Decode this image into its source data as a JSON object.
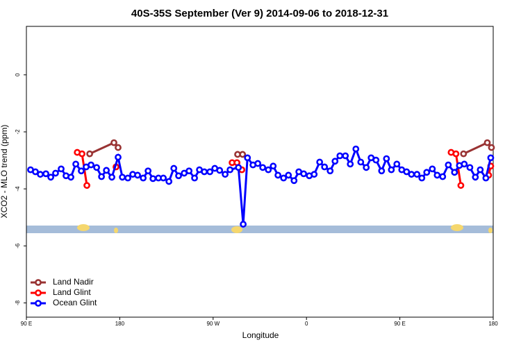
{
  "chart_data": {
    "type": "line",
    "title": "40S-35S September (Ver 9)   2014-09-06 to 2018-12-31",
    "x_label": "Longitude",
    "y_label": "XCO2 - MLO trend (ppm)",
    "xlim": [
      90,
      540
    ],
    "xticks": [
      {
        "value": 90,
        "label": "90 E"
      },
      180,
      {
        "value": 270,
        "label": "90 W"
      },
      {
        "value": 360,
        "label": "0"
      },
      {
        "value": 450,
        "label": "90 E"
      },
      {
        "value": 540,
        "label": "180"
      }
    ],
    "ylim": [
      -8.5,
      1.7
    ],
    "yticks": [
      0,
      -2,
      -4,
      -6,
      -8
    ],
    "legend": "bottom-left",
    "series": [
      {
        "name": "Land Nadir",
        "color": "#993333",
        "x": [
          151.0,
          174.4,
          178.4,
          null,
          293.6,
          298.4,
          null,
          511.4,
          534.3,
          538.3
        ],
        "values": [
          -2.77,
          -2.38,
          -2.55,
          null,
          -2.79,
          -2.79,
          null,
          -2.77,
          -2.38,
          -2.55
        ]
      },
      {
        "name": "Land Glint",
        "color": "#ff0000",
        "x": [
          139.0,
          143.6,
          148.3,
          null,
          176.4,
          null,
          288.3,
          293.0,
          297.7,
          null,
          499.4,
          504.1,
          508.8,
          null,
          535.6,
          537.6
        ],
        "values": [
          -2.72,
          -2.77,
          -3.88,
          null,
          -3.23,
          null,
          -3.08,
          -3.08,
          -3.33,
          null,
          -2.72,
          -2.77,
          -3.88,
          null,
          -3.52,
          -3.2
        ]
      },
      {
        "name": "Ocean Glint",
        "color": "#0000ff",
        "x": [
          94.0,
          98.7,
          103.4,
          108.8,
          113.5,
          118.1,
          123.5,
          128.2,
          132.9,
          137.6,
          142.9,
          147.6,
          152.3,
          157.7,
          162.4,
          167.1,
          172.4,
          178.4,
          182.5,
          187.8,
          192.5,
          197.2,
          202.6,
          207.3,
          212.0,
          217.3,
          222.0,
          227.4,
          232.1,
          236.7,
          242.1,
          246.8,
          252.1,
          256.8,
          261.5,
          266.9,
          271.6,
          276.3,
          281.6,
          286.3,
          294.4,
          299.0,
          303.1,
          308.4,
          313.1,
          317.8,
          323.2,
          327.9,
          332.5,
          337.9,
          342.6,
          348.0,
          352.6,
          357.3,
          362.7,
          367.4,
          372.7,
          377.4,
          382.8,
          387.5,
          392.2,
          397.5,
          402.2,
          407.6,
          412.3,
          417.6,
          422.3,
          427.0,
          432.4,
          437.1,
          441.8,
          447.1,
          451.8,
          456.5,
          461.2,
          466.5,
          471.2,
          475.9,
          481.3,
          486.0,
          491.3,
          496.7,
          502.7,
          507.4,
          512.1,
          517.5,
          522.8,
          527.5,
          532.9,
          537.6
        ],
        "values": [
          -3.33,
          -3.4,
          -3.49,
          -3.47,
          -3.59,
          -3.45,
          -3.3,
          -3.54,
          -3.59,
          -3.13,
          -3.37,
          -3.23,
          -3.16,
          -3.25,
          -3.57,
          -3.35,
          -3.59,
          -2.89,
          -3.59,
          -3.62,
          -3.49,
          -3.52,
          -3.62,
          -3.37,
          -3.64,
          -3.62,
          -3.62,
          -3.74,
          -3.28,
          -3.54,
          -3.45,
          -3.37,
          -3.62,
          -3.33,
          -3.4,
          -3.4,
          -3.28,
          -3.35,
          -3.49,
          -3.33,
          -3.25,
          -5.24,
          -2.91,
          -3.16,
          -3.11,
          -3.25,
          -3.33,
          -3.2,
          -3.52,
          -3.62,
          -3.52,
          -3.71,
          -3.4,
          -3.47,
          -3.54,
          -3.49,
          -3.06,
          -3.23,
          -3.37,
          -3.03,
          -2.84,
          -2.84,
          -3.13,
          -2.6,
          -3.06,
          -3.25,
          -2.91,
          -2.99,
          -3.37,
          -2.94,
          -3.33,
          -3.13,
          -3.33,
          -3.4,
          -3.49,
          -3.49,
          -3.62,
          -3.42,
          -3.3,
          -3.52,
          -3.57,
          -3.16,
          -3.42,
          -3.18,
          -3.13,
          -3.25,
          -3.59,
          -3.33,
          -3.62,
          -2.91
        ]
      }
    ]
  }
}
